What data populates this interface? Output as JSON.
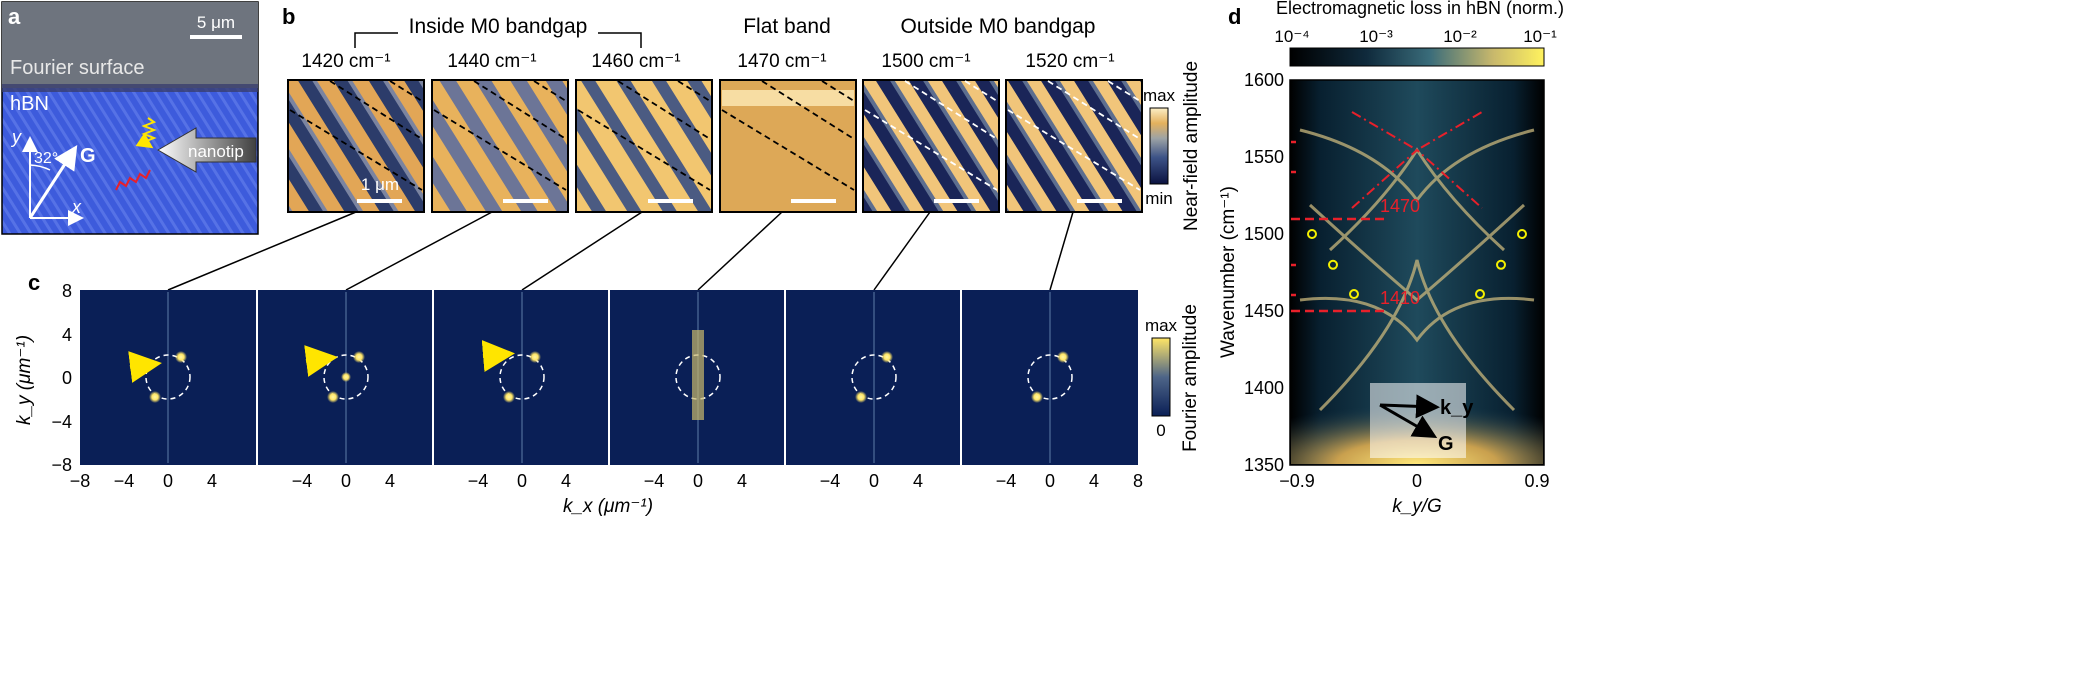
{
  "panel_a": {
    "label": "a",
    "scalebar": "5 μm",
    "region_top": "Fourier surface",
    "region_bottom": "hBN",
    "angle": "32°",
    "y_axis": "y",
    "x_axis": "x",
    "vector": "G",
    "tip_label": "nanotip"
  },
  "panel_b": {
    "label": "b",
    "group_inside": "Inside M0 bandgap",
    "group_flat": "Flat band",
    "group_outside": "Outside M0 bandgap",
    "images": [
      {
        "wavenumber": "1420 cm⁻¹"
      },
      {
        "wavenumber": "1440 cm⁻¹"
      },
      {
        "wavenumber": "1460 cm⁻¹"
      },
      {
        "wavenumber": "1470 cm⁻¹"
      },
      {
        "wavenumber": "1500 cm⁻¹"
      },
      {
        "wavenumber": "1520 cm⁻¹"
      }
    ],
    "scalebar": "1 μm",
    "colorbar_max": "max",
    "colorbar_min": "min",
    "colorbar_title": "Near-field amplitude",
    "colors": {
      "dark": "#141a4a",
      "mid": "#5d6e8f",
      "light": "#e8b45a",
      "pale": "#fbe6b0"
    }
  },
  "panel_c": {
    "label": "c",
    "ylabel": "k_y (μm⁻¹)",
    "xlabel": "k_x (μm⁻¹)",
    "yticks": [
      "8",
      "4",
      "0",
      "−4",
      "−8"
    ],
    "xticks": [
      "−8",
      "−4",
      "0",
      "4",
      "−4",
      "0",
      "4",
      "−4",
      "0",
      "4",
      "−4",
      "0",
      "4",
      "−4",
      "0",
      "4",
      "−4",
      "0",
      "4",
      "8"
    ],
    "colorbar_max": "max",
    "colorbar_min": "0",
    "colorbar_title": "Fourier amplitude",
    "colors": {
      "bg": "#0a1f56",
      "spot": "#ffe566",
      "arrow": "#ffe500"
    }
  },
  "panel_d": {
    "label": "d",
    "colorbar_title": "Electromagnetic loss in hBN (norm.)",
    "colorbar_ticks": [
      "10⁻⁴",
      "10⁻³",
      "10⁻²",
      "10⁻¹"
    ],
    "ylabel": "Wavenumber (cm⁻¹)",
    "xlabel": "k_y/G",
    "yticks": [
      "1600",
      "1550",
      "1500",
      "1450",
      "1400",
      "1350"
    ],
    "xticks": [
      "−0.9",
      "0",
      "0.9"
    ],
    "line_1470": "1470",
    "line_1410": "1410",
    "inset_ky": "k_y",
    "inset_G": "G",
    "colors": {
      "dashed": "#e8202a",
      "circle": "#f4f000"
    }
  },
  "chart_data": {
    "type": "heatmap",
    "title": "Electromagnetic loss in hBN (norm.)",
    "xlabel": "k_y/G",
    "ylabel": "Wavenumber (cm⁻¹)",
    "xlim": [
      -0.9,
      0.9
    ],
    "ylim": [
      1350,
      1600
    ],
    "colorbar_range": [
      0.0001,
      0.1
    ],
    "horizontal_lines": [
      1510,
      1470,
      1450,
      1410
    ],
    "markers": {
      "series": [
        {
          "name": "measured points left",
          "x": [
            -0.75,
            -0.6,
            -0.45
          ],
          "y": [
            1500,
            1480,
            1461
          ]
        },
        {
          "name": "measured points right",
          "x": [
            0.75,
            0.6,
            0.45
          ],
          "y": [
            1500,
            1480,
            1461
          ]
        }
      ]
    }
  }
}
